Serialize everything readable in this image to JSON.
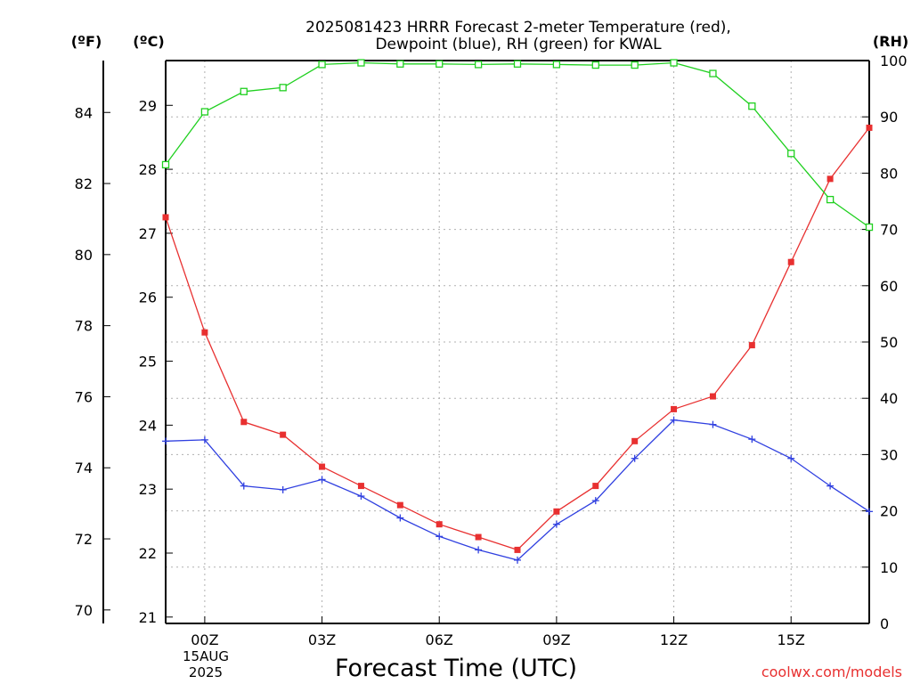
{
  "chart_data": {
    "type": "line",
    "title_line1": "2025081423 HRRR Forecast 2-meter Temperature (red),",
    "title_line2": "Dewpoint (blue), RH (green) for KWAL",
    "axis_units": {
      "fahrenheit": "(ºF)",
      "celsius": "(ºC)",
      "rh": "(RH)"
    },
    "xlabel": "Forecast Time (UTC)",
    "date_label_day": "15AUG",
    "date_label_year": "2025",
    "watermark": "coolwx.com/models",
    "x_range_hours": [
      -1,
      17
    ],
    "x_ticks": [
      {
        "hour": 0,
        "label": "00Z"
      },
      {
        "hour": 3,
        "label": "03Z"
      },
      {
        "hour": 6,
        "label": "06Z"
      },
      {
        "hour": 9,
        "label": "09Z"
      },
      {
        "hour": 12,
        "label": "12Z"
      },
      {
        "hour": 15,
        "label": "15Z"
      }
    ],
    "celsius_range": [
      20.9,
      29.7
    ],
    "celsius_ticks": [
      21,
      22,
      23,
      24,
      25,
      26,
      27,
      28,
      29
    ],
    "fahrenheit_ticks": [
      70,
      72,
      74,
      76,
      78,
      80,
      82,
      84
    ],
    "rh_range": [
      0,
      100
    ],
    "rh_ticks": [
      0,
      10,
      20,
      30,
      40,
      50,
      60,
      70,
      80,
      90,
      100
    ],
    "grid": true,
    "series": [
      {
        "name": "Temperature",
        "color": "#e83030",
        "axis": "celsius",
        "marker": "filled-square",
        "x": [
          -1,
          0,
          1,
          2,
          3,
          4,
          5,
          6,
          7,
          8,
          9,
          10,
          11,
          12,
          13,
          14,
          15,
          16,
          17
        ],
        "y": [
          27.25,
          25.45,
          24.05,
          23.85,
          23.35,
          23.05,
          22.75,
          22.45,
          22.25,
          22.05,
          22.65,
          23.05,
          23.75,
          24.25,
          24.45,
          25.25,
          26.55,
          27.85,
          28.65
        ]
      },
      {
        "name": "Dewpoint",
        "color": "#3040e0",
        "axis": "celsius",
        "marker": "plus",
        "x": [
          -1,
          0,
          1,
          2,
          3,
          4,
          5,
          6,
          7,
          8,
          9,
          10,
          11,
          12,
          13,
          14,
          15,
          16,
          17
        ],
        "y": [
          23.75,
          23.77,
          23.05,
          22.99,
          23.15,
          22.89,
          22.55,
          22.26,
          22.05,
          21.89,
          22.45,
          22.82,
          23.48,
          24.08,
          24.01,
          23.78,
          23.48,
          23.05,
          22.65
        ]
      },
      {
        "name": "RH",
        "color": "#20d020",
        "axis": "rh",
        "marker": "open-square",
        "x": [
          -1,
          0,
          1,
          2,
          3,
          4,
          5,
          6,
          7,
          8,
          9,
          10,
          11,
          12,
          13,
          14,
          15,
          16,
          17
        ],
        "y": [
          81.5,
          90.9,
          94.5,
          95.2,
          99.3,
          99.6,
          99.4,
          99.4,
          99.3,
          99.4,
          99.3,
          99.2,
          99.2,
          99.6,
          97.7,
          91.9,
          83.5,
          75.3,
          70.4
        ]
      }
    ]
  }
}
